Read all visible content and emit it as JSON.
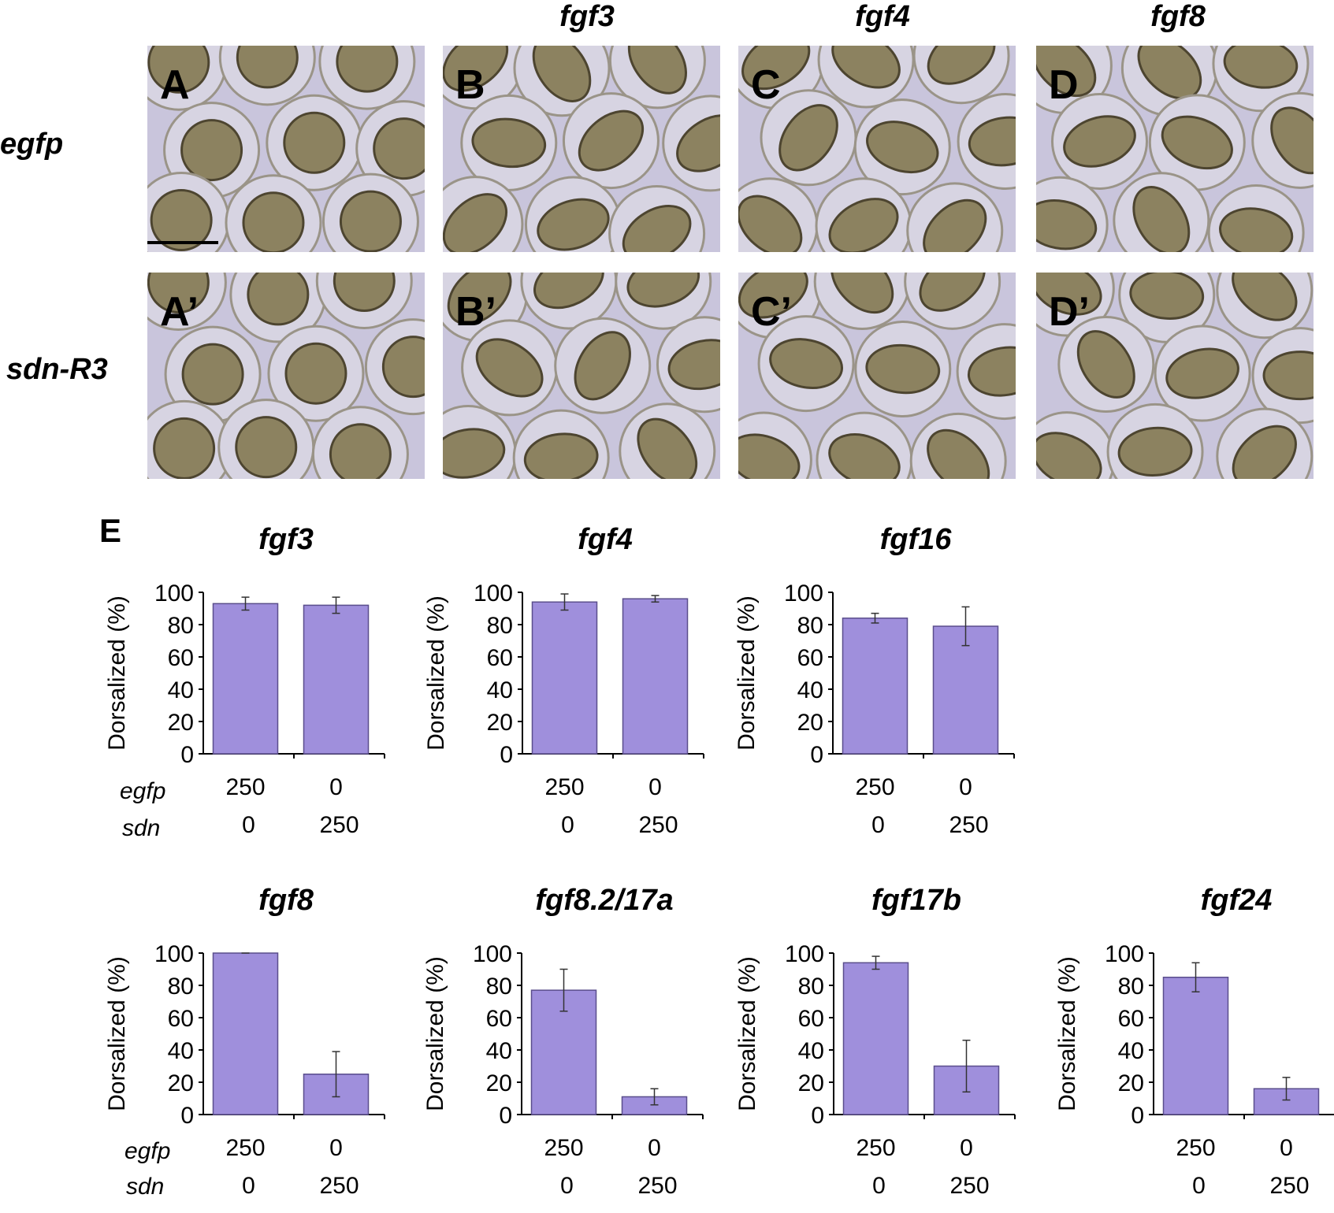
{
  "column_headers": [
    "",
    "fgf3",
    "fgf4",
    "fgf8"
  ],
  "row_headers": [
    "egfp",
    "sdn-R3"
  ],
  "panels_top": [
    "A",
    "B",
    "C",
    "D"
  ],
  "panels_bottom": [
    "A’",
    "B’",
    "C’",
    "D’"
  ],
  "panel_e_label": "E",
  "row_labels": {
    "egfp": "egfp",
    "sdn": "sdn"
  },
  "colors": {
    "bar": "#9f8fdc",
    "bar_edge": "#5a4e8c",
    "photo_bg": "#c9c5dc",
    "egg": "#8c8260"
  },
  "chart_data": [
    {
      "type": "bar",
      "title": "fgf3",
      "ylabel": "Dorsalized (%)",
      "ylim": [
        0,
        100
      ],
      "yticks": [
        0,
        20,
        40,
        60,
        80,
        100
      ],
      "categories": [
        [
          "250",
          "0"
        ],
        [
          "0",
          "250"
        ]
      ],
      "values": [
        93,
        92
      ],
      "errors": [
        4,
        5
      ]
    },
    {
      "type": "bar",
      "title": "fgf4",
      "ylabel": "Dorsalized (%)",
      "ylim": [
        0,
        100
      ],
      "yticks": [
        0,
        20,
        40,
        60,
        80,
        100
      ],
      "categories": [
        [
          "250",
          "0"
        ],
        [
          "0",
          "250"
        ]
      ],
      "values": [
        94,
        96
      ],
      "errors": [
        5,
        2
      ]
    },
    {
      "type": "bar",
      "title": "fgf16",
      "ylabel": "Dorsalized (%)",
      "ylim": [
        0,
        100
      ],
      "yticks": [
        0,
        20,
        40,
        60,
        80,
        100
      ],
      "categories": [
        [
          "250",
          "0"
        ],
        [
          "0",
          "250"
        ]
      ],
      "values": [
        84,
        79
      ],
      "errors": [
        3,
        12
      ]
    },
    {
      "type": "bar",
      "title": "fgf8",
      "ylabel": "Dorsalized (%)",
      "ylim": [
        0,
        100
      ],
      "yticks": [
        0,
        20,
        40,
        60,
        80,
        100
      ],
      "categories": [
        [
          "250",
          "0"
        ],
        [
          "0",
          "250"
        ]
      ],
      "values": [
        100,
        25
      ],
      "errors": [
        0,
        14
      ]
    },
    {
      "type": "bar",
      "title": "fgf8.2/17a",
      "ylabel": "Dorsalized (%)",
      "ylim": [
        0,
        100
      ],
      "yticks": [
        0,
        20,
        40,
        60,
        80,
        100
      ],
      "categories": [
        [
          "250",
          "0"
        ],
        [
          "0",
          "250"
        ]
      ],
      "values": [
        77,
        11
      ],
      "errors": [
        13,
        5
      ]
    },
    {
      "type": "bar",
      "title": "fgf17b",
      "ylabel": "Dorsalized (%)",
      "ylim": [
        0,
        100
      ],
      "yticks": [
        0,
        20,
        40,
        60,
        80,
        100
      ],
      "categories": [
        [
          "250",
          "0"
        ],
        [
          "0",
          "250"
        ]
      ],
      "values": [
        94,
        30
      ],
      "errors": [
        4,
        16
      ]
    },
    {
      "type": "bar",
      "title": "fgf24",
      "ylabel": "Dorsalized (%)",
      "ylim": [
        0,
        100
      ],
      "yticks": [
        0,
        20,
        40,
        60,
        80,
        100
      ],
      "categories": [
        [
          "250",
          "0"
        ],
        [
          "0",
          "250"
        ]
      ],
      "values": [
        85,
        16
      ],
      "errors": [
        9,
        7
      ]
    }
  ]
}
